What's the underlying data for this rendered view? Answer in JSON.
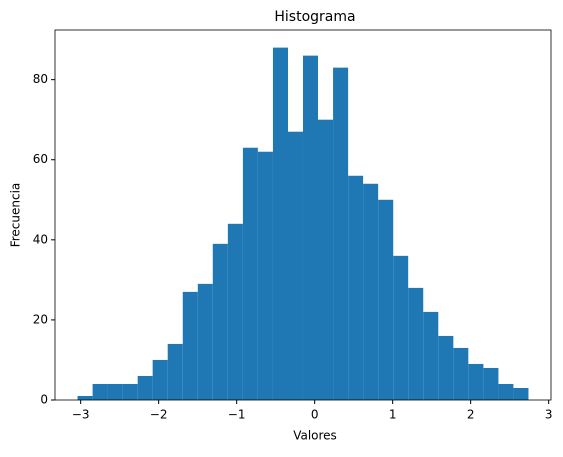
{
  "chart_data": {
    "type": "histogram",
    "title": "Histograma",
    "x_label": "Valores",
    "y_label": "Frecuencia",
    "bins": [
      -3.04,
      -2.847,
      -2.655,
      -2.462,
      -2.269,
      -2.077,
      -1.884,
      -1.691,
      -1.498,
      -1.306,
      -1.113,
      -0.92,
      -0.728,
      -0.535,
      -0.342,
      -0.15,
      0.043,
      0.236,
      0.429,
      0.621,
      0.814,
      1.007,
      1.199,
      1.392,
      1.585,
      1.778,
      1.97,
      2.163,
      2.356,
      2.548,
      2.741
    ],
    "values": [
      1,
      4,
      4,
      4,
      6,
      10,
      14,
      27,
      29,
      39,
      44,
      63,
      62,
      88,
      67,
      86,
      70,
      83,
      56,
      54,
      50,
      36,
      28,
      22,
      16,
      13,
      9,
      8,
      4,
      3
    ],
    "color": "#1f77b4",
    "xlim": [
      -3.329,
      3.03
    ],
    "ylim": [
      0,
      92.4
    ],
    "xticks": [
      {
        "value": -3,
        "label": "−3"
      },
      {
        "value": -2,
        "label": "−2"
      },
      {
        "value": -1,
        "label": "−1"
      },
      0,
      1,
      2,
      3
    ],
    "yticks": [
      0,
      20,
      40,
      60,
      80
    ]
  }
}
